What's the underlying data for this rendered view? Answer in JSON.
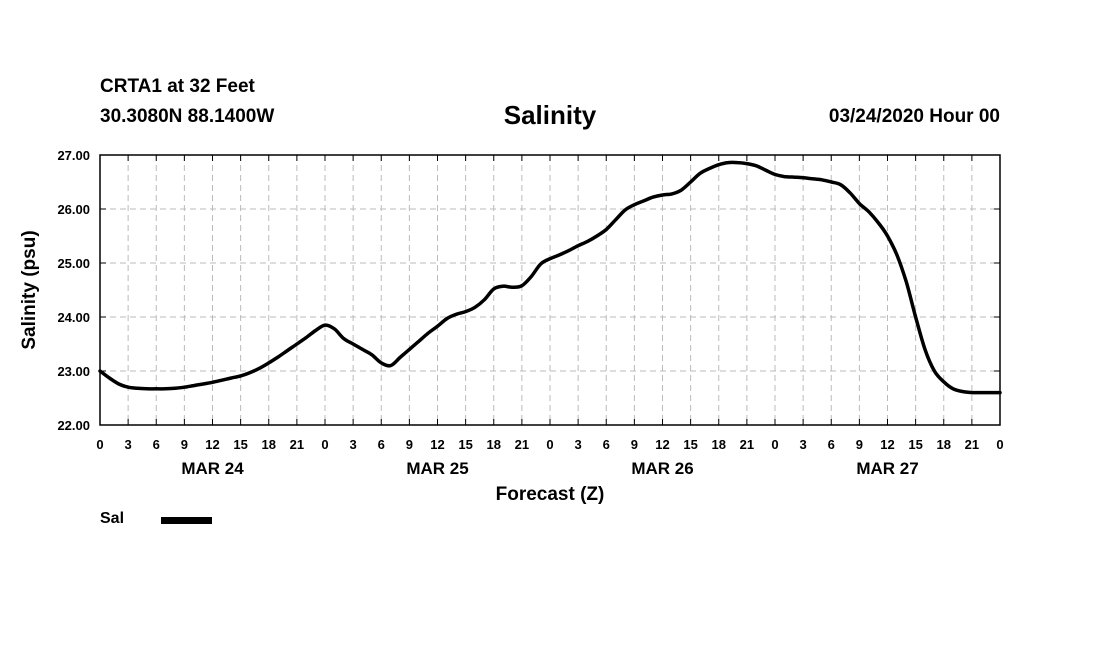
{
  "header": {
    "station": "CRTA1 at 32 Feet",
    "coords": "30.3080N 88.1400W",
    "title": "Salinity",
    "date": "03/24/2020 Hour 00"
  },
  "legend": {
    "label": "Sal"
  },
  "colors": {
    "line": "#000000",
    "grid": "#bbbbbb"
  },
  "chart_data": {
    "type": "line",
    "title": "Salinity",
    "xlabel": "Forecast (Z)",
    "ylabel": "Salinity (psu)",
    "x_unit": "hours since 03/24/2020 00Z",
    "xlim": [
      0,
      96
    ],
    "ylim": [
      22.0,
      27.0
    ],
    "y_ticks": [
      22.0,
      23.0,
      24.0,
      25.0,
      26.0,
      27.0
    ],
    "y_tick_labels": [
      "22.00",
      "23.00",
      "24.00",
      "25.00",
      "26.00",
      "27.00"
    ],
    "x_ticks": [
      0,
      3,
      6,
      9,
      12,
      15,
      18,
      21,
      24,
      27,
      30,
      33,
      36,
      39,
      42,
      45,
      48,
      51,
      54,
      57,
      60,
      63,
      66,
      69,
      72,
      75,
      78,
      81,
      84,
      87,
      90,
      93,
      96
    ],
    "x_tick_labels": [
      "0",
      "3",
      "6",
      "9",
      "12",
      "15",
      "18",
      "21",
      "0",
      "3",
      "6",
      "9",
      "12",
      "15",
      "18",
      "21",
      "0",
      "3",
      "6",
      "9",
      "12",
      "15",
      "18",
      "21",
      "0",
      "3",
      "6",
      "9",
      "12",
      "15",
      "18",
      "21",
      "0"
    ],
    "day_labels": [
      {
        "label": "MAR 24",
        "hour": 12
      },
      {
        "label": "MAR 25",
        "hour": 36
      },
      {
        "label": "MAR 26",
        "hour": 60
      },
      {
        "label": "MAR 27",
        "hour": 84
      }
    ],
    "grid": true,
    "legend_position": "bottom-left",
    "series": [
      {
        "name": "Sal",
        "x": [
          0,
          1,
          2,
          3,
          4,
          5,
          6,
          7,
          8,
          9,
          10,
          11,
          12,
          13,
          14,
          15,
          16,
          17,
          18,
          19,
          20,
          21,
          22,
          23,
          24,
          25,
          26,
          27,
          28,
          29,
          30,
          31,
          32,
          33,
          34,
          35,
          36,
          37,
          38,
          39,
          40,
          41,
          42,
          43,
          44,
          45,
          46,
          47,
          48,
          49,
          50,
          51,
          52,
          53,
          54,
          55,
          56,
          57,
          58,
          59,
          60,
          61,
          62,
          63,
          64,
          65,
          66,
          67,
          68,
          69,
          70,
          71,
          72,
          73,
          74,
          75,
          76,
          77,
          78,
          79,
          80,
          81,
          82,
          83,
          84,
          85,
          86,
          87,
          88,
          89,
          90,
          91,
          92,
          93,
          94,
          95,
          96
        ],
        "y": [
          23.0,
          22.87,
          22.76,
          22.7,
          22.68,
          22.67,
          22.67,
          22.67,
          22.68,
          22.7,
          22.73,
          22.76,
          22.79,
          22.83,
          22.87,
          22.91,
          22.97,
          23.05,
          23.15,
          23.26,
          23.38,
          23.5,
          23.62,
          23.75,
          23.85,
          23.78,
          23.6,
          23.5,
          23.4,
          23.3,
          23.15,
          23.1,
          23.25,
          23.4,
          23.55,
          23.7,
          23.83,
          23.97,
          24.05,
          24.1,
          24.18,
          24.32,
          24.52,
          24.57,
          24.55,
          24.58,
          24.75,
          24.98,
          25.08,
          25.15,
          25.23,
          25.32,
          25.4,
          25.5,
          25.62,
          25.8,
          25.98,
          26.08,
          26.15,
          26.22,
          26.26,
          26.28,
          26.35,
          26.5,
          26.66,
          26.75,
          26.82,
          26.86,
          26.86,
          26.84,
          26.8,
          26.72,
          26.64,
          26.6,
          26.59,
          26.58,
          26.56,
          26.54,
          26.5,
          26.45,
          26.3,
          26.1,
          25.95,
          25.75,
          25.5,
          25.15,
          24.65,
          24.0,
          23.4,
          23.0,
          22.8,
          22.67,
          22.62,
          22.6,
          22.6,
          22.6,
          22.6
        ]
      }
    ]
  }
}
